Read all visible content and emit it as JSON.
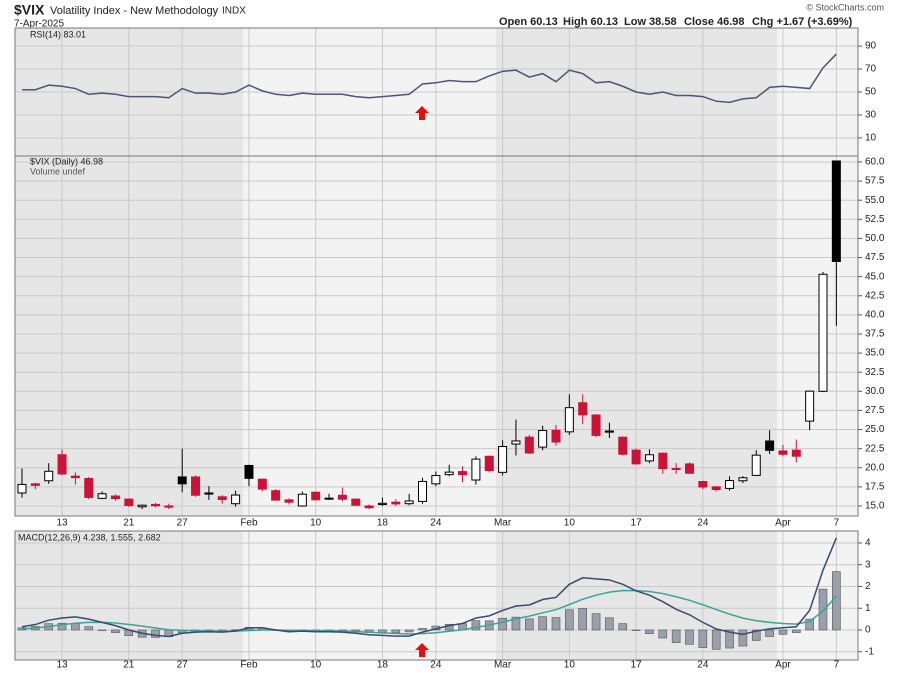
{
  "header": {
    "symbol": "$VIX",
    "name": "Volatility Index - New Methodology",
    "exchange": "INDX",
    "date": "7-Apr-2025",
    "quote": [
      "Open 60.13",
      "High 60.13",
      "Low 38.58",
      "Close 46.98",
      "Chg +1.67 (+3.69%)"
    ],
    "credit": "© StockCharts.com"
  },
  "chart_data": [
    {
      "type": "line",
      "legend": "RSI(14) 83.01",
      "color": "#4a5677",
      "grid": true,
      "values": [
        52,
        52,
        56,
        55,
        53,
        48,
        49,
        48,
        46,
        46,
        46,
        45,
        53,
        49,
        49,
        48,
        50,
        56,
        51,
        48,
        47,
        49,
        48,
        48,
        48,
        46,
        45,
        46,
        47,
        48,
        57,
        58,
        60,
        59,
        59,
        64,
        68,
        69,
        63,
        66,
        59,
        69,
        66,
        58,
        59,
        55,
        50,
        48,
        50,
        47,
        47,
        46,
        42,
        41,
        44,
        45,
        54,
        55,
        54,
        53,
        71,
        83.01
      ],
      "ylim": [
        -5.7,
        105.7
      ],
      "yticks": [
        10,
        30,
        50,
        70,
        90
      ]
    },
    {
      "type": "candlestick",
      "legend": [
        "$VIX (Daily) 46.98",
        "Volume undef"
      ],
      "up_color": "#000000",
      "down_color": "#cc1236",
      "grid": true,
      "categories": [
        null,
        null,
        null,
        "13",
        null,
        null,
        null,
        null,
        "21",
        null,
        null,
        null,
        "27",
        null,
        null,
        null,
        null,
        "Feb",
        null,
        null,
        null,
        null,
        "10",
        null,
        null,
        null,
        null,
        "18",
        null,
        null,
        null,
        "24",
        null,
        null,
        null,
        null,
        "Mar",
        null,
        null,
        null,
        null,
        "10",
        null,
        null,
        null,
        null,
        "17",
        null,
        null,
        null,
        null,
        "24",
        null,
        null,
        null,
        null,
        null,
        "Apr",
        null,
        null,
        null,
        "7"
      ],
      "open": [
        16.7,
        17.9,
        18.3,
        21.7,
        18.9,
        18.6,
        16.0,
        16.3,
        15.9,
        14.9,
        15.2,
        15.0,
        18.8,
        18.8,
        16.7,
        16.2,
        15.3,
        20.3,
        18.5,
        17.0,
        15.8,
        15.0,
        16.8,
        16.0,
        16.4,
        15.9,
        15.0,
        15.2,
        15.5,
        15.3,
        15.6,
        17.9,
        19.1,
        19.5,
        18.4,
        21.5,
        19.4,
        23.1,
        24.0,
        22.7,
        24.9,
        24.7,
        28.5,
        26.9,
        24.8,
        24.0,
        22.3,
        20.9,
        21.9,
        19.9,
        20.5,
        18.2,
        17.5,
        17.3,
        18.3,
        19.0,
        23.5,
        22.2,
        22.3,
        26.1,
        30.0,
        60.13
      ],
      "high": [
        19.9,
        18.0,
        20.6,
        22.4,
        19.4,
        18.8,
        16.9,
        16.5,
        16.0,
        15.2,
        15.4,
        15.3,
        22.5,
        19.0,
        17.6,
        16.4,
        17.0,
        20.4,
        18.6,
        17.2,
        16.0,
        16.9,
        16.9,
        16.6,
        17.4,
        16.0,
        15.2,
        16.1,
        15.9,
        16.6,
        18.7,
        19.5,
        20.4,
        20.2,
        21.5,
        21.6,
        23.6,
        26.3,
        24.3,
        25.5,
        25.6,
        29.6,
        29.6,
        27.0,
        25.9,
        24.1,
        22.5,
        22.4,
        22.0,
        20.6,
        20.7,
        18.3,
        17.6,
        18.9,
        18.9,
        22.3,
        24.9,
        23.0,
        23.7,
        30.1,
        45.6,
        60.13
      ],
      "low": [
        16.1,
        17.2,
        17.9,
        19.0,
        17.8,
        15.9,
        15.9,
        15.7,
        14.9,
        14.6,
        14.8,
        14.6,
        16.8,
        16.2,
        15.8,
        15.3,
        14.9,
        17.6,
        16.9,
        15.7,
        15.2,
        14.9,
        15.7,
        15.8,
        15.6,
        15.0,
        14.6,
        15.0,
        15.0,
        15.1,
        15.3,
        17.6,
        18.9,
        18.1,
        17.8,
        19.4,
        19.0,
        21.6,
        21.8,
        22.3,
        22.9,
        24.3,
        25.7,
        24.0,
        23.9,
        21.6,
        20.4,
        20.6,
        19.2,
        19.2,
        19.2,
        17.2,
        16.9,
        17.0,
        18.0,
        19.0,
        21.8,
        21.5,
        20.7,
        24.9,
        29.9,
        38.58
      ],
      "close": [
        17.82,
        17.7,
        19.54,
        19.19,
        18.71,
        16.12,
        16.6,
        15.97,
        15.06,
        15.1,
        15.02,
        14.85,
        17.9,
        16.41,
        16.56,
        15.84,
        16.43,
        18.62,
        17.21,
        15.77,
        15.5,
        16.54,
        15.81,
        16.02,
        15.89,
        15.1,
        14.77,
        15.35,
        15.27,
        15.66,
        18.21,
        18.98,
        19.43,
        19.1,
        21.13,
        19.63,
        22.78,
        23.51,
        21.93,
        24.87,
        23.37,
        27.86,
        26.92,
        24.23,
        24.66,
        21.77,
        20.51,
        21.7,
        19.9,
        19.8,
        19.28,
        17.48,
        17.15,
        18.33,
        18.69,
        21.65,
        22.28,
        21.77,
        21.51,
        30.02,
        45.31,
        46.98
      ],
      "ylim": [
        13.69,
        60.78
      ],
      "yticks": [
        {
          "value": 15,
          "label": "15.0"
        },
        17.5,
        {
          "value": 20,
          "label": "20.0"
        },
        22.5,
        {
          "value": 25,
          "label": "25.0"
        },
        27.5,
        {
          "value": 30,
          "label": "30.0"
        },
        32.5,
        {
          "value": 35,
          "label": "35.0"
        },
        37.5,
        {
          "value": 40,
          "label": "40.0"
        },
        42.5,
        {
          "value": 45,
          "label": "45.0"
        },
        47.5,
        {
          "value": 50,
          "label": "50.0"
        },
        52.5,
        {
          "value": 55,
          "label": "55.0"
        },
        57.5,
        {
          "value": 60,
          "label": "60.0"
        }
      ]
    },
    {
      "type": "macd",
      "legend": "MACD(12,26,9) 4.238, 1.555, 2.682",
      "macd_color": "#3d4870",
      "signal_color": "#3aa597",
      "histogram_color": "#9aa0ab",
      "grid": true,
      "categories": [
        null,
        null,
        null,
        "13",
        null,
        null,
        null,
        null,
        "21",
        null,
        null,
        null,
        "27",
        null,
        null,
        null,
        null,
        "Feb",
        null,
        null,
        null,
        null,
        "10",
        null,
        null,
        null,
        null,
        "18",
        null,
        null,
        null,
        "24",
        null,
        null,
        null,
        null,
        "Mar",
        null,
        null,
        null,
        null,
        "10",
        null,
        null,
        null,
        null,
        "17",
        null,
        null,
        null,
        null,
        "24",
        null,
        null,
        null,
        null,
        null,
        "Apr",
        null,
        null,
        null,
        "7"
      ],
      "macd": [
        0.15,
        0.25,
        0.45,
        0.55,
        0.6,
        0.5,
        0.35,
        0.2,
        0.0,
        -0.15,
        -0.25,
        -0.3,
        -0.15,
        -0.1,
        -0.08,
        -0.1,
        -0.05,
        0.1,
        0.1,
        0.0,
        -0.08,
        -0.05,
        -0.08,
        -0.08,
        -0.1,
        -0.15,
        -0.22,
        -0.25,
        -0.28,
        -0.28,
        -0.1,
        0.05,
        0.2,
        0.3,
        0.55,
        0.65,
        0.9,
        1.1,
        1.15,
        1.4,
        1.5,
        2.1,
        2.4,
        2.35,
        2.3,
        2.1,
        1.8,
        1.6,
        1.3,
        0.95,
        0.7,
        0.35,
        0.05,
        -0.1,
        -0.2,
        -0.05,
        0.05,
        0.1,
        0.15,
        0.9,
        2.75,
        4.238
      ],
      "signal": [
        0.05,
        0.09,
        0.162,
        0.24,
        0.312,
        0.35,
        0.35,
        0.32,
        0.256,
        0.175,
        0.09,
        0.012,
        -0.02,
        -0.036,
        -0.045,
        -0.056,
        -0.055,
        -0.024,
        0.001,
        0.001,
        -0.015,
        -0.022,
        -0.034,
        -0.043,
        -0.054,
        -0.073,
        -0.102,
        -0.132,
        -0.162,
        -0.186,
        -0.169,
        -0.125,
        -0.06,
        0.012,
        0.12,
        0.226,
        0.361,
        0.509,
        0.637,
        0.79,
        0.932,
        1.166,
        1.413,
        1.6,
        1.74,
        1.812,
        1.81,
        1.768,
        1.674,
        1.529,
        1.363,
        1.16,
        0.938,
        0.73,
        0.544,
        0.425,
        0.35,
        0.3,
        0.27,
        0.396,
        0.867,
        1.555
      ],
      "histogram": [
        0.1,
        0.16,
        0.29,
        0.31,
        0.29,
        0.15,
        0.0,
        -0.12,
        -0.26,
        -0.33,
        -0.34,
        -0.31,
        -0.13,
        -0.06,
        -0.04,
        -0.04,
        0.01,
        0.12,
        0.1,
        0.0,
        -0.07,
        -0.03,
        -0.05,
        -0.04,
        -0.05,
        -0.08,
        -0.12,
        -0.12,
        -0.12,
        -0.09,
        0.07,
        0.18,
        0.26,
        0.29,
        0.43,
        0.42,
        0.54,
        0.59,
        0.51,
        0.61,
        0.57,
        0.93,
        0.99,
        0.75,
        0.56,
        0.29,
        -0.01,
        -0.17,
        -0.37,
        -0.58,
        -0.66,
        -0.81,
        -0.89,
        -0.83,
        -0.74,
        -0.48,
        -0.3,
        -0.2,
        -0.12,
        0.5,
        1.88,
        2.682
      ],
      "ylim": [
        -1.38,
        4.55
      ],
      "yticks": [
        -1,
        0,
        1,
        2,
        3,
        4
      ]
    }
  ]
}
